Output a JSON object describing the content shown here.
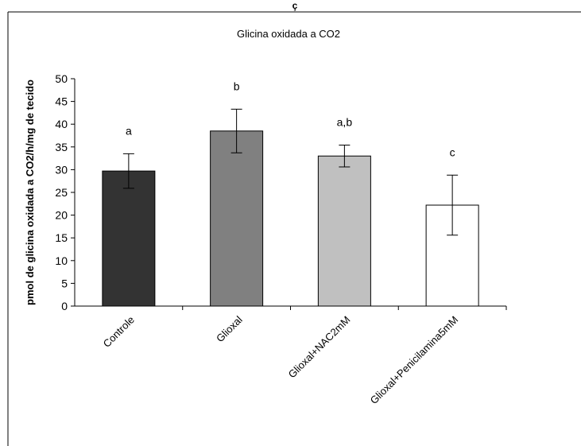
{
  "chart_data": {
    "type": "bar",
    "title": "Glicina oxidada a CO2",
    "top_cut_text": "ç",
    "ylabel": "pmol de glicina oxidada a CO2/h/mg de tecido",
    "xlabel": "",
    "ylim": [
      0,
      50
    ],
    "yticks": [
      "0",
      "5",
      "10",
      "15",
      "20",
      "25",
      "30",
      "35",
      "40",
      "45",
      "50"
    ],
    "categories": [
      "Controle",
      "Glioxal",
      "Glioxal+NAC2mM",
      "Glioxal+Penicilamina5mM"
    ],
    "values": [
      29.7,
      38.5,
      33.0,
      22.2
    ],
    "errors": [
      3.8,
      4.8,
      2.4,
      6.6
    ],
    "significance": [
      "a",
      "b",
      "a,b",
      "c"
    ],
    "colors": [
      "#333333",
      "#808080",
      "#c0c0c0",
      "#ffffff"
    ],
    "grid": false,
    "legend": "none"
  }
}
